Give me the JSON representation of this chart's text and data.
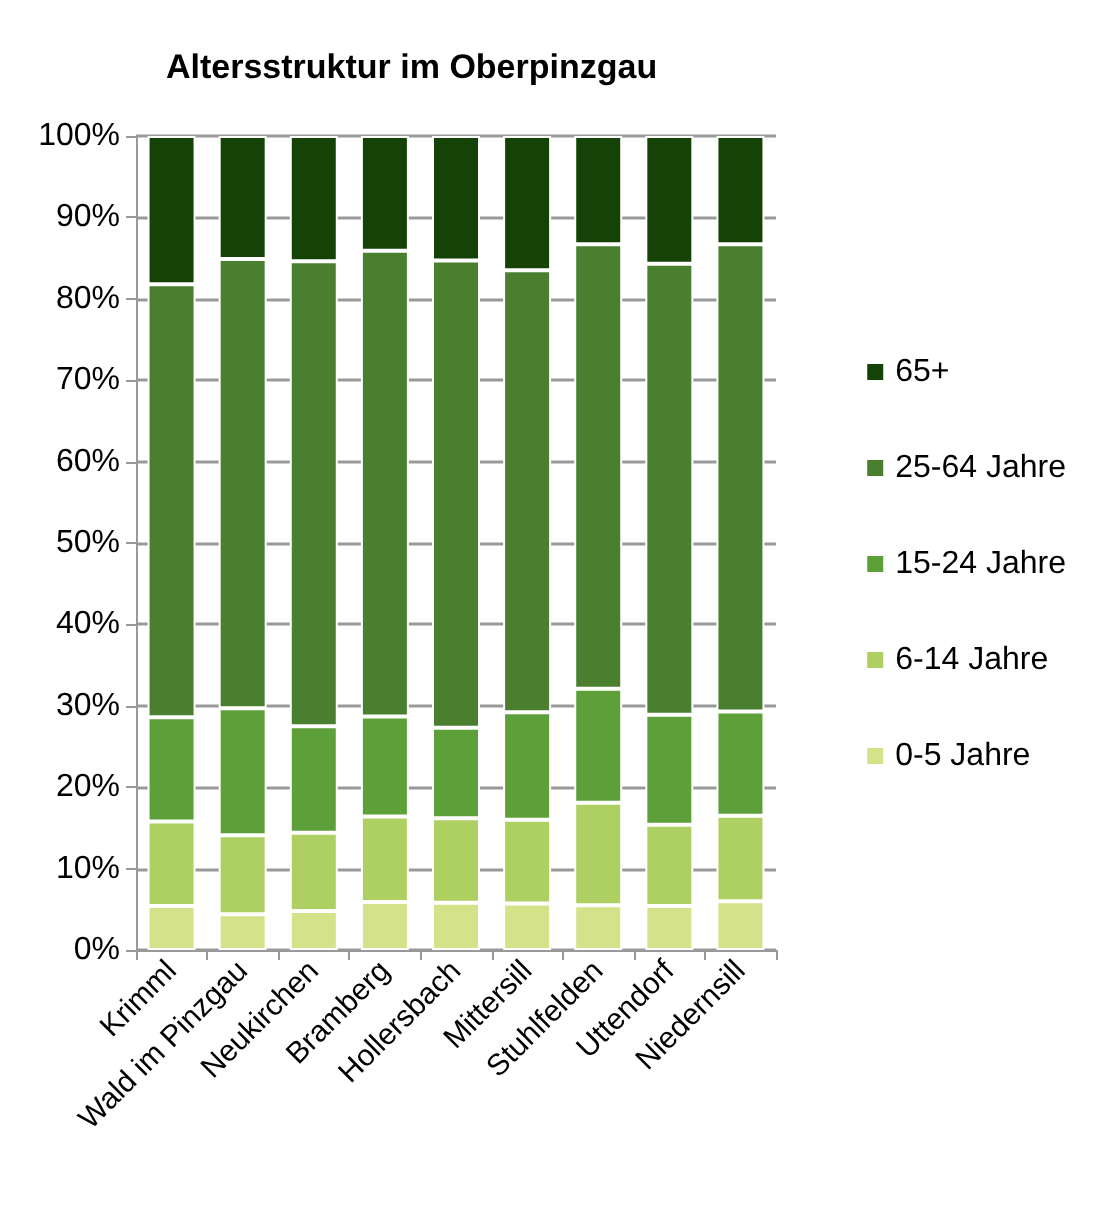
{
  "chart_data": {
    "type": "bar",
    "title": "Altersstruktur im Oberpinzgau",
    "stacked": true,
    "categories": [
      "Krimml",
      "Wald im Pinzgau",
      "Neukirchen",
      "Bramberg",
      "Hollersbach",
      "Mittersill",
      "Stuhlfelden",
      "Uttendorf",
      "Niedernsill"
    ],
    "series": [
      {
        "name": "0-5 Jahre",
        "color": "#d4e28a",
        "values": [
          5.4,
          4.4,
          4.8,
          5.9,
          5.8,
          5.7,
          5.5,
          5.4,
          6.0
        ]
      },
      {
        "name": "6-14 Jahre",
        "color": "#aecf62",
        "values": [
          10.4,
          9.7,
          9.6,
          10.5,
          10.4,
          10.3,
          12.6,
          10.0,
          10.5
        ]
      },
      {
        "name": "15-24 Jahre",
        "color": "#5da03a",
        "values": [
          12.8,
          15.6,
          13.1,
          12.3,
          11.1,
          13.2,
          14.0,
          13.5,
          12.8
        ]
      },
      {
        "name": "25-64 Jahre",
        "color": "#4a7f2f",
        "values": [
          53.2,
          55.2,
          57.1,
          57.2,
          57.4,
          54.3,
          54.6,
          55.4,
          57.4
        ]
      },
      {
        "name": "65+",
        "color": "#154307",
        "values": [
          18.2,
          15.1,
          15.4,
          14.1,
          15.3,
          16.5,
          13.3,
          15.7,
          13.3
        ]
      }
    ],
    "ylim": [
      0,
      100
    ],
    "yticks": [
      {
        "value": 0,
        "label": "0%"
      },
      {
        "value": 10,
        "label": "10%"
      },
      {
        "value": 20,
        "label": "20%"
      },
      {
        "value": 30,
        "label": "30%"
      },
      {
        "value": 40,
        "label": "40%"
      },
      {
        "value": 50,
        "label": "50%"
      },
      {
        "value": 60,
        "label": "60%"
      },
      {
        "value": 70,
        "label": "70%"
      },
      {
        "value": 80,
        "label": "80%"
      },
      {
        "value": 90,
        "label": "90%"
      },
      {
        "value": 100,
        "label": "100%"
      }
    ],
    "grid": "y",
    "legend": "right"
  }
}
